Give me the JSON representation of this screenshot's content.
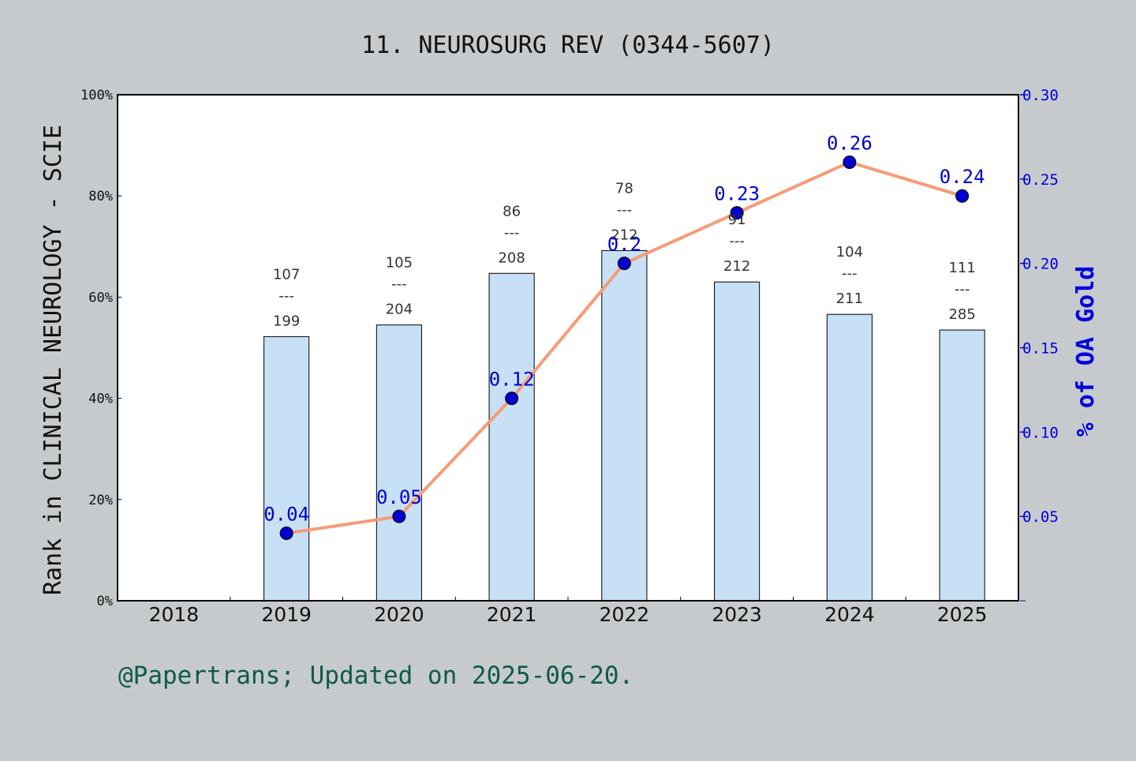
{
  "chart_data": {
    "type": "bar",
    "title": "11. NEUROSURG REV (0344-5607)",
    "ylabel": "Rank in CLINICAL NEUROLOGY - SCIE",
    "y2label": "% of OA Gold",
    "categories": [
      "2018",
      "2019",
      "2020",
      "2021",
      "2022",
      "2023",
      "2024",
      "2025"
    ],
    "ylim": [
      0,
      100
    ],
    "y2lim": [
      0,
      0.3
    ],
    "yticks": [
      "0%",
      "20%",
      "40%",
      "60%",
      "80%",
      "100%"
    ],
    "y2ticks": [
      "0.05",
      "0.10",
      "0.15",
      "0.20",
      "0.25",
      "0.30"
    ],
    "series": [
      {
        "kind": "bar",
        "axis": "left",
        "values": [
          null,
          52.2,
          54.5,
          64.7,
          69.2,
          63.0,
          56.6,
          53.5
        ],
        "ranks": [
          null,
          "107",
          "105",
          "86",
          "78",
          "91",
          "104",
          "111"
        ],
        "totals": [
          null,
          "199",
          "204",
          "208",
          "212",
          "212",
          "211",
          "285"
        ],
        "rank_separator": "---",
        "color": "#c7e0f6"
      },
      {
        "kind": "line",
        "axis": "right",
        "values": [
          null,
          0.04,
          0.05,
          0.12,
          0.2,
          0.23,
          0.26,
          0.24
        ],
        "labels": [
          null,
          "0.04",
          "0.05",
          "0.12",
          "0.2",
          "0.23",
          "0.26",
          "0.24"
        ],
        "line_color": "#f79b78",
        "marker_color": "#0000cc"
      }
    ],
    "grid": false,
    "footer": "@Papertrans; Updated on 2025-06-20."
  },
  "colors": {
    "background": "#c6cacd",
    "plot_background": "#ffffff",
    "right_axis": "#0000dd",
    "footer_text": "#0e5a4c"
  }
}
